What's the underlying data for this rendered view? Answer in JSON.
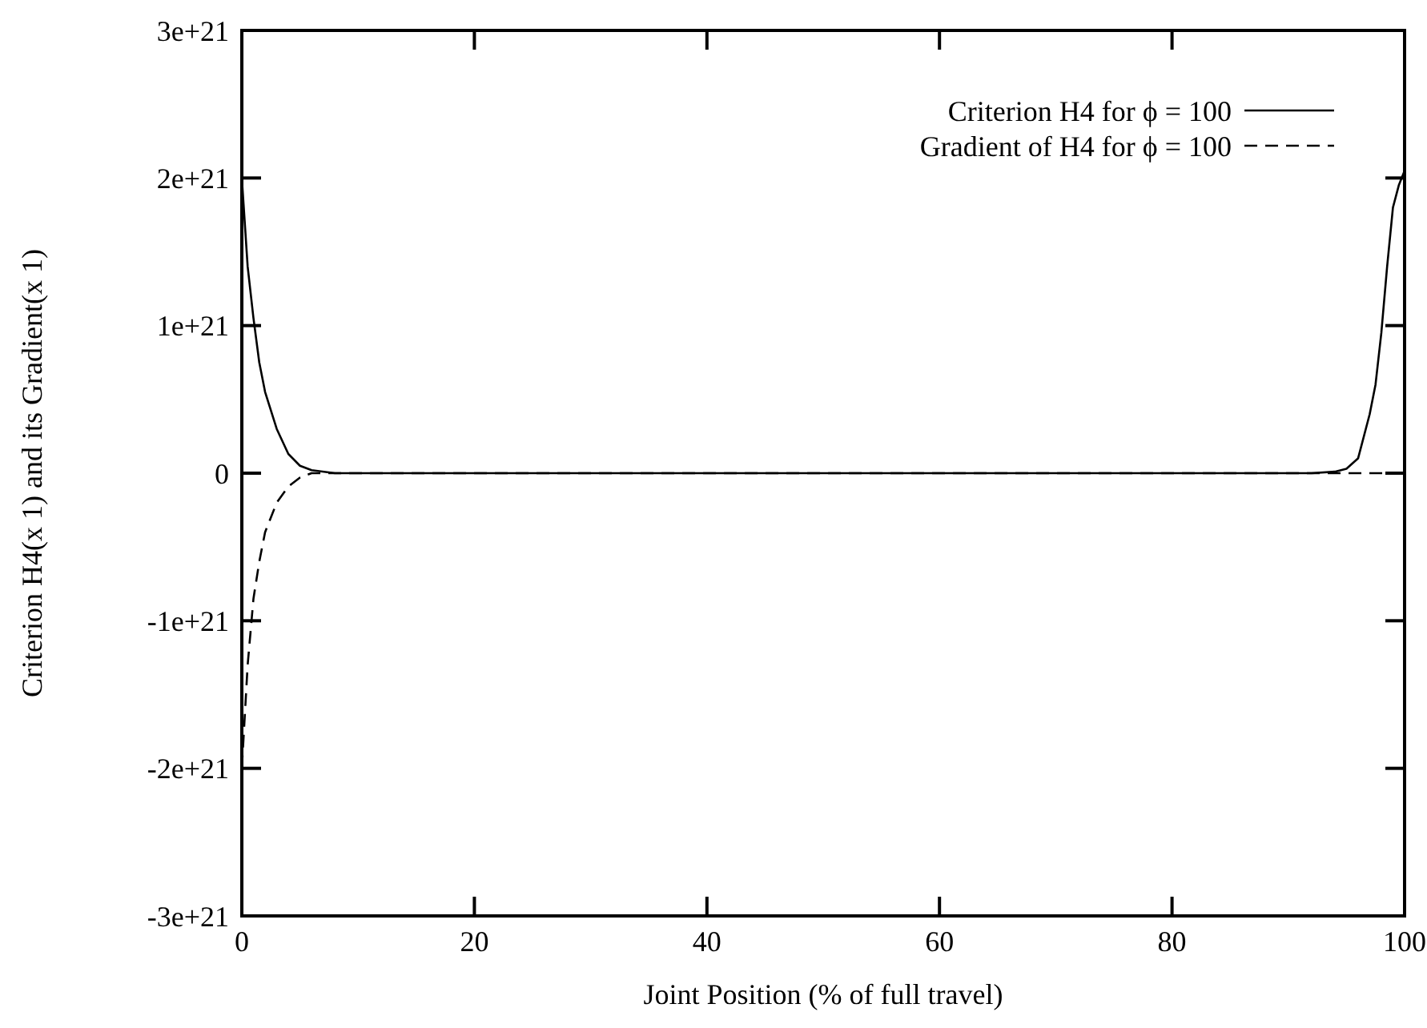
{
  "chart_data": {
    "type": "line",
    "xlabel": "Joint Position (% of full travel)",
    "ylabel": "Criterion H4(x 1) and its Gradient(x 1)",
    "xlim": [
      0,
      100
    ],
    "xticks": [
      0,
      20,
      40,
      60,
      80,
      100
    ],
    "ylim": [
      -3e+21,
      3e+21
    ],
    "yticks": [
      {
        "value": -3e+21,
        "label": "-3e+21"
      },
      {
        "value": -2e+21,
        "label": "-2e+21"
      },
      {
        "value": -1e+21,
        "label": "-1e+21"
      },
      0,
      {
        "value": 1e+21,
        "label": "1e+21"
      },
      {
        "value": 2e+21,
        "label": "2e+21"
      },
      {
        "value": 3e+21,
        "label": "3e+21"
      }
    ],
    "grid": false,
    "legend": "top right",
    "series": [
      {
        "name": "Criterion H4 for ϕ = 100",
        "color": "#000000",
        "line_style": "solid",
        "x": [
          0,
          0.5,
          1,
          1.5,
          2,
          3,
          4,
          5,
          6,
          8,
          20,
          40,
          60,
          80,
          92,
          94,
          95,
          96,
          97,
          97.5,
          98,
          98.5,
          99,
          99.5,
          100
        ],
        "values": [
          2e+21,
          1.4e+21,
          1.05e+21,
          7.5e+20,
          5.5e+20,
          3e+20,
          1.3e+20,
          5e+19,
          2e+19,
          0,
          0,
          0,
          0,
          0,
          0,
          1e+19,
          3e+19,
          1e+20,
          4e+20,
          6e+20,
          9.5e+20,
          1.4e+21,
          1.8e+21,
          1.95e+21,
          2.05e+21
        ]
      },
      {
        "name": "Gradient of H4 for ϕ = 100",
        "color": "#000000",
        "line_style": "dashed",
        "x": [
          0,
          0.5,
          1,
          1.5,
          2,
          3,
          4,
          5,
          6,
          8,
          20,
          40,
          60,
          80,
          100
        ],
        "values": [
          -2e+21,
          -1.3e+21,
          -8.5e+20,
          -6e+20,
          -4e+20,
          -2e+20,
          -9e+19,
          -3e+19,
          0,
          0,
          0,
          0,
          0,
          0,
          0
        ]
      }
    ]
  }
}
